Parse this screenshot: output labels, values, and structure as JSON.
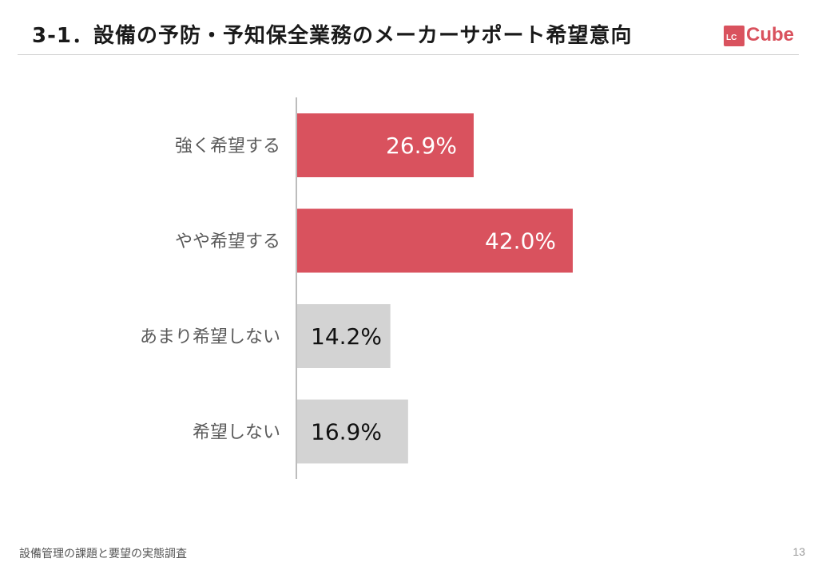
{
  "header": {
    "title": "3-1．設備の予防・予知保全業務のメーカーサポート希望意向"
  },
  "logo": {
    "box_text": "LC",
    "word": "Cube"
  },
  "footer": {
    "text": "設備管理の課題と要望の実態調査",
    "page": "13"
  },
  "colors": {
    "accent": "#d9525e",
    "neutral_bar": "#d3d3d3",
    "value_on_accent": "#ffffff",
    "value_on_neutral": "#111111"
  },
  "chart_data": {
    "type": "bar",
    "orientation": "horizontal",
    "title": "",
    "xlabel": "",
    "ylabel": "",
    "categories": [
      "強く希望する",
      "やや希望する",
      "あまり希望しない",
      "希望しない"
    ],
    "values": [
      26.9,
      42.0,
      14.2,
      16.9
    ],
    "value_labels": [
      "26.9%",
      "42.0%",
      "14.2%",
      "16.9%"
    ],
    "bar_colors": [
      "#d9525e",
      "#d9525e",
      "#d3d3d3",
      "#d3d3d3"
    ],
    "xlim": [
      0,
      100
    ],
    "grid": false,
    "legend": "none"
  }
}
